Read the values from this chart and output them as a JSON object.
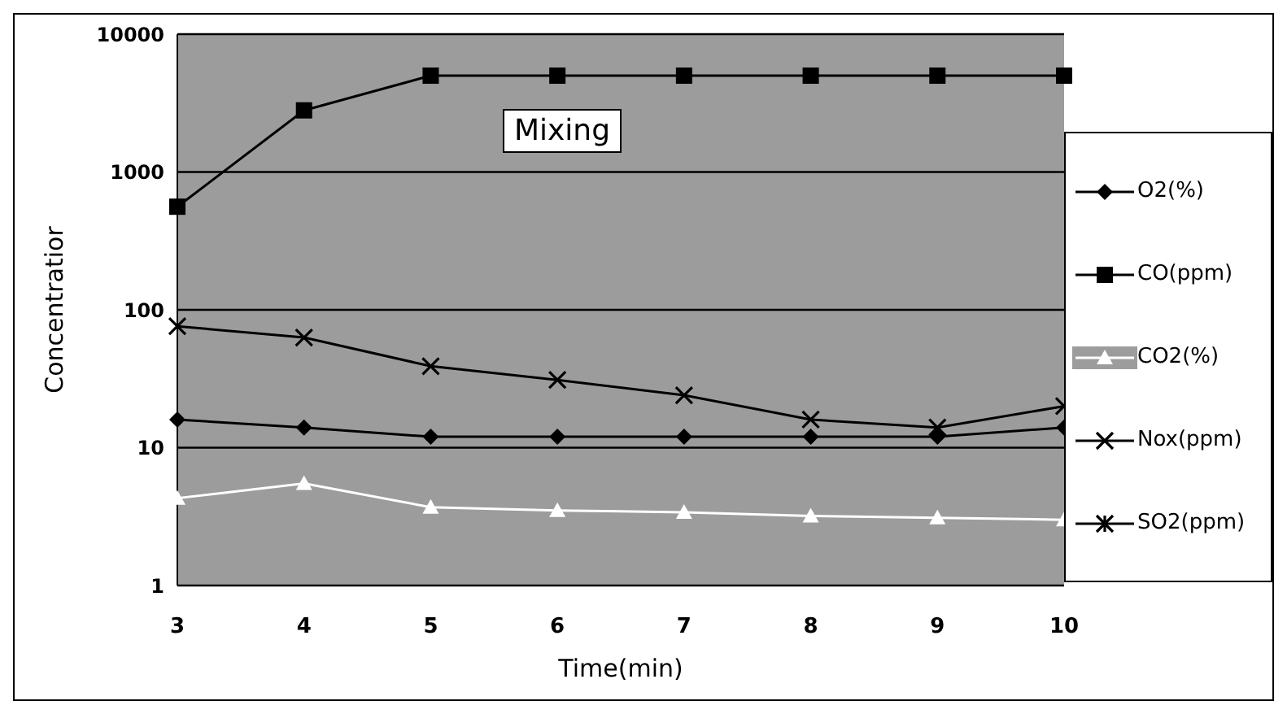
{
  "chart_data": {
    "type": "line",
    "xlabel": "Time(min)",
    "ylabel": "Concentratior",
    "categories": [
      "3",
      "4",
      "5",
      "6",
      "7",
      "8",
      "9",
      "10"
    ],
    "series": [
      {
        "name": "O2(%)",
        "color": "#000000",
        "marker": "diamond",
        "values": [
          16,
          14,
          12,
          12,
          12,
          12,
          12,
          14
        ]
      },
      {
        "name": "CO(ppm)",
        "color": "#000000",
        "marker": "square",
        "values": [
          560,
          2800,
          5000,
          5000,
          5000,
          5000,
          5000,
          5000
        ]
      },
      {
        "name": "CO2(%)",
        "color": "#ffffff",
        "marker": "triangle",
        "values": [
          4.3,
          5.5,
          3.7,
          3.5,
          3.4,
          3.2,
          3.1,
          3.0
        ]
      },
      {
        "name": "Nox(ppm)",
        "color": "#000000",
        "marker": "cross",
        "values": [
          76,
          63,
          39,
          31,
          24,
          16,
          14,
          20
        ]
      },
      {
        "name": "SO2(ppm)",
        "color": "#000000",
        "marker": "star",
        "values": [
          null,
          null,
          null,
          null,
          null,
          null,
          null,
          null
        ]
      }
    ],
    "log": "y",
    "ylim": [
      1,
      10000
    ],
    "yticks": [
      1,
      10,
      100,
      1000,
      10000
    ],
    "grid": "y",
    "legend": "right",
    "annotations": [
      "Mixing"
    ]
  }
}
